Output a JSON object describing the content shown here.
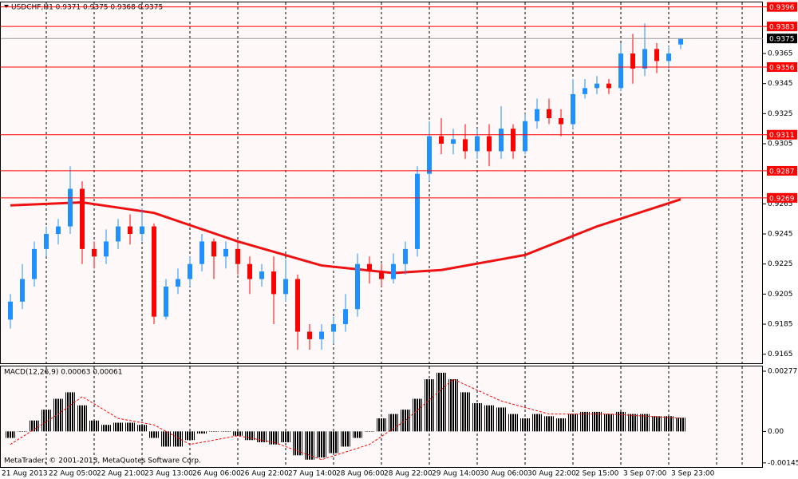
{
  "chart_data": [
    {
      "type": "candlestick",
      "title": "USDCHF,H1  0.9371 0.9375 0.9368 0.9375",
      "up_color": "#1e90ff",
      "down_color": "#ff0000",
      "open": [
        0.9188,
        0.92,
        0.9215,
        0.9235,
        0.9245,
        0.925,
        0.9275,
        0.9235,
        0.923,
        0.924,
        0.925,
        0.9245,
        0.925,
        0.919,
        0.921,
        0.9215,
        0.9225,
        0.924,
        0.923,
        0.9235,
        0.9225,
        0.9215,
        0.922,
        0.9205,
        0.9215,
        0.918,
        0.9175,
        0.918,
        0.9185,
        0.9195,
        0.9225,
        0.922,
        0.9215,
        0.9225,
        0.9235,
        0.9285,
        0.931,
        0.9305,
        0.9308,
        0.93,
        0.931,
        0.93,
        0.9315,
        0.93,
        0.932,
        0.9328,
        0.9322,
        0.9318,
        0.9338,
        0.9342,
        0.9345,
        0.9342,
        0.9365,
        0.9355,
        0.9368,
        0.936,
        0.9371
      ],
      "high": [
        0.9205,
        0.9225,
        0.924,
        0.925,
        0.9255,
        0.929,
        0.928,
        0.924,
        0.9248,
        0.9255,
        0.9258,
        0.9262,
        0.9252,
        0.9215,
        0.9222,
        0.923,
        0.9245,
        0.9242,
        0.924,
        0.924,
        0.923,
        0.9225,
        0.923,
        0.9228,
        0.9218,
        0.9185,
        0.9185,
        0.919,
        0.9205,
        0.9232,
        0.923,
        0.9225,
        0.9232,
        0.924,
        0.929,
        0.932,
        0.9322,
        0.9315,
        0.9318,
        0.9315,
        0.9318,
        0.933,
        0.9318,
        0.9325,
        0.9335,
        0.9335,
        0.9328,
        0.9348,
        0.9348,
        0.935,
        0.9348,
        0.9372,
        0.9378,
        0.9385,
        0.9372,
        0.937,
        0.9375
      ],
      "low": [
        0.9182,
        0.9195,
        0.921,
        0.923,
        0.9238,
        0.9245,
        0.9225,
        0.9222,
        0.9225,
        0.9235,
        0.9238,
        0.924,
        0.9185,
        0.9188,
        0.9205,
        0.921,
        0.922,
        0.9215,
        0.9222,
        0.9218,
        0.9205,
        0.921,
        0.9185,
        0.92,
        0.9168,
        0.9168,
        0.9168,
        0.9172,
        0.918,
        0.919,
        0.9212,
        0.921,
        0.9212,
        0.9218,
        0.923,
        0.928,
        0.9298,
        0.9298,
        0.9295,
        0.9295,
        0.929,
        0.9295,
        0.9295,
        0.9298,
        0.9315,
        0.9318,
        0.931,
        0.9315,
        0.9335,
        0.9338,
        0.9338,
        0.934,
        0.9345,
        0.935,
        0.9352,
        0.9355,
        0.9368
      ],
      "close": [
        0.92,
        0.9215,
        0.9235,
        0.9245,
        0.925,
        0.9275,
        0.9235,
        0.923,
        0.924,
        0.925,
        0.9245,
        0.925,
        0.919,
        0.921,
        0.9215,
        0.9225,
        0.924,
        0.923,
        0.9235,
        0.9225,
        0.9215,
        0.922,
        0.9205,
        0.9215,
        0.918,
        0.9175,
        0.918,
        0.9185,
        0.9195,
        0.9225,
        0.922,
        0.9215,
        0.9225,
        0.9235,
        0.9285,
        0.931,
        0.9305,
        0.9308,
        0.93,
        0.931,
        0.93,
        0.9315,
        0.93,
        0.932,
        0.9328,
        0.9322,
        0.9318,
        0.9338,
        0.9342,
        0.9345,
        0.9342,
        0.9365,
        0.9355,
        0.9368,
        0.936,
        0.9365,
        0.9375
      ],
      "ma": {
        "color": "#ee1111",
        "x": [
          0,
          6,
          12,
          19,
          26,
          32,
          36,
          43,
          49,
          56
        ],
        "values": [
          0.9264,
          0.9266,
          0.9259,
          0.924,
          0.9224,
          0.9219,
          0.9221,
          0.9231,
          0.925,
          0.9268
        ]
      },
      "levels": [
        0.9396,
        0.9383,
        0.9356,
        0.9311,
        0.9287,
        0.9269
      ],
      "level_color": "#ff0000",
      "ylim": [
        0.9159,
        0.9399
      ],
      "yticks": [
        0.9365,
        0.9345,
        0.9325,
        0.9305,
        0.9265,
        0.9245,
        0.9225,
        0.9205,
        0.9185,
        0.9165
      ],
      "xticks": [
        {
          "value": -1,
          "label": "21 Aug 2013"
        },
        {
          "value": 3,
          "label": "22 Aug 05:00"
        },
        {
          "value": 7,
          "label": "22 Aug 21:00"
        },
        {
          "value": 11,
          "label": "23 Aug 13:00"
        },
        {
          "value": 15,
          "label": "26 Aug 06:00"
        },
        {
          "value": 19,
          "label": "26 Aug 22:00"
        },
        {
          "value": 23,
          "label": "27 Aug 14:00"
        },
        {
          "value": 27,
          "label": "28 Aug 06:00"
        },
        {
          "value": 31,
          "label": "28 Aug 22:00"
        },
        {
          "value": 35,
          "label": "29 Aug 14:00"
        },
        {
          "value": 39,
          "label": "30 Aug 06:00"
        },
        {
          "value": 43,
          "label": "30 Aug 22:00"
        },
        {
          "value": 47,
          "label": "2 Sep 15:00"
        },
        {
          "value": 51,
          "label": "3 Sep 07:00"
        },
        {
          "value": 55,
          "label": "3 Sep 23:00"
        }
      ],
      "grid": true
    },
    {
      "type": "macd",
      "title": "MACD(12,26,9) 0.00063 0.00061",
      "color": "#000000",
      "values": [
        -0.0003,
        0.0,
        0.0005,
        0.001,
        0.0015,
        0.0018,
        0.0012,
        0.0005,
        0.0003,
        0.0004,
        0.0004,
        0.0003,
        -0.0003,
        -0.0007,
        -0.0007,
        -0.0004,
        -0.0001,
        0.0,
        0.0,
        -0.0002,
        -0.0004,
        -0.0005,
        -0.0006,
        -0.0005,
        -0.0011,
        -0.0013,
        -0.0012,
        -0.001,
        -0.0007,
        -0.0003,
        0.0,
        0.0006,
        0.0008,
        0.001,
        0.0015,
        0.0024,
        0.0027,
        0.0024,
        0.0018,
        0.0013,
        0.0012,
        0.0011,
        0.0008,
        0.0006,
        0.0008,
        0.0007,
        0.0006,
        0.0008,
        0.0009,
        0.0009,
        0.0008,
        0.0009,
        0.0008,
        0.0008,
        0.0007,
        0.0007,
        0.00063
      ],
      "signal": {
        "color": "#ff0000",
        "x": [
          0,
          4,
          6,
          9,
          12,
          15,
          19,
          22,
          26,
          30,
          33,
          37,
          41,
          45,
          50,
          56
        ],
        "values": [
          -0.0006,
          0.0008,
          0.0016,
          0.0006,
          0.0003,
          -0.0006,
          -0.0002,
          -0.0005,
          -0.0013,
          -0.0006,
          0.0005,
          0.0024,
          0.0014,
          0.0008,
          0.0008,
          0.00061
        ]
      },
      "ylim": [
        -0.00164,
        0.00299
      ],
      "yticks": [
        0.00277,
        {
          "value": 0,
          "label": "0.00"
        },
        -0.00145
      ],
      "footer": "MetaTrader, © 2001-2013, MetaQuotes Software Corp."
    }
  ]
}
